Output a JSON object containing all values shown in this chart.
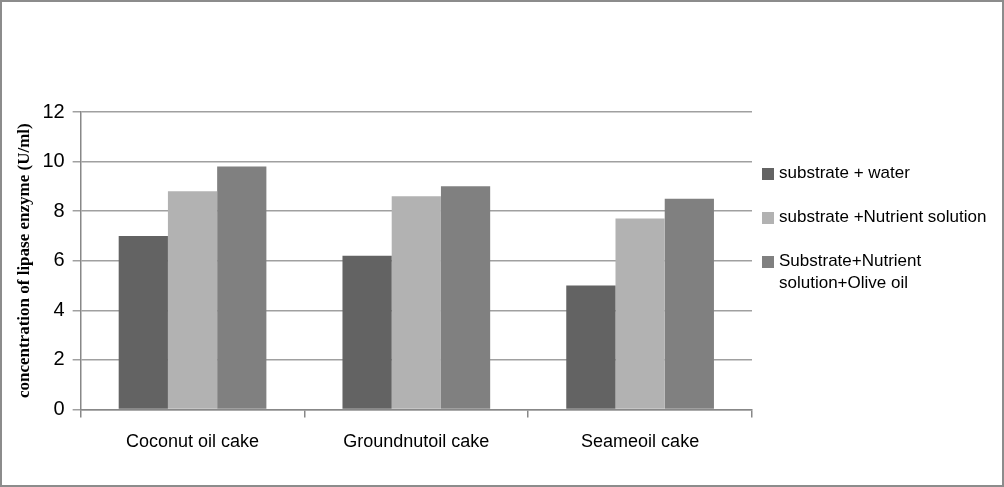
{
  "chart_data": {
    "type": "bar",
    "ylabel": "concentration of lipase enzyme (U/ml)",
    "categories": [
      "Coconut oil cake",
      "Groundnutoil cake",
      "Seameoil cake"
    ],
    "series": [
      {
        "name": "substrate + water",
        "color": "#636363",
        "values": [
          7.0,
          6.2,
          5.0
        ]
      },
      {
        "name": "substrate +Nutrient solution",
        "color": "#b2b2b2",
        "values": [
          8.8,
          8.6,
          7.7
        ]
      },
      {
        "name": "Substrate+Nutrient solution+Olive oil",
        "color": "#808080",
        "values": [
          9.8,
          9.0,
          8.5
        ]
      }
    ],
    "ylim": [
      0,
      12
    ],
    "yticks": [
      0,
      2,
      4,
      6,
      8,
      10,
      12
    ],
    "grid": "y",
    "legend": "right"
  }
}
